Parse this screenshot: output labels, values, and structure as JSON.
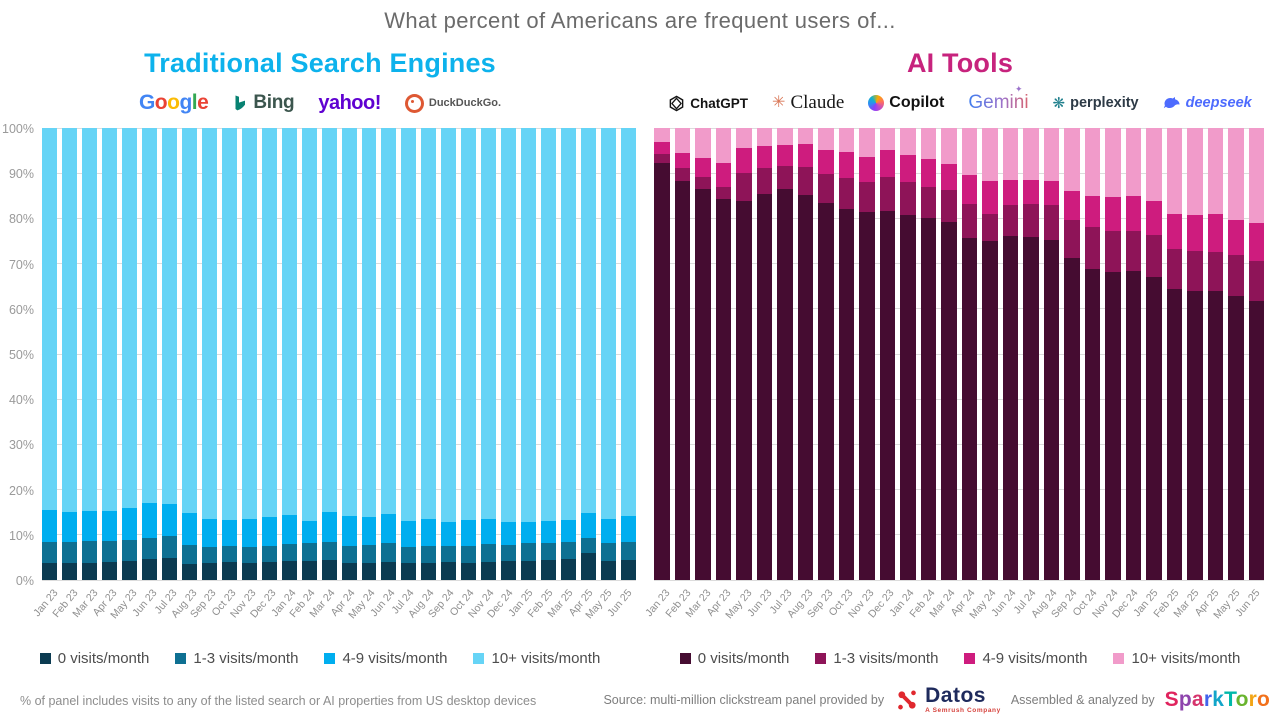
{
  "title": "What percent of Americans are frequent users of...",
  "charts": [
    {
      "title": "Traditional Search Engines",
      "title_color": "#0db2ec",
      "logos": [
        {
          "name": "google",
          "text": "Google"
        },
        {
          "name": "bing",
          "text": "Bing"
        },
        {
          "name": "yahoo",
          "text": "yahoo!"
        },
        {
          "name": "duckduckgo",
          "text": "DuckDuckGo."
        }
      ],
      "google_letters": [
        [
          "G",
          "#4285F4"
        ],
        [
          "o",
          "#EA4335"
        ],
        [
          "o",
          "#FBBC05"
        ],
        [
          "g",
          "#4285F4"
        ],
        [
          "l",
          "#34A853"
        ],
        [
          "e",
          "#EA4335"
        ]
      ]
    },
    {
      "title": "AI Tools",
      "title_color": "#c7237d",
      "logos": [
        {
          "name": "chatgpt",
          "text": "ChatGPT"
        },
        {
          "name": "claude",
          "text": "Claude"
        },
        {
          "name": "copilot",
          "text": "Copilot"
        },
        {
          "name": "gemini",
          "text": "Gemini"
        },
        {
          "name": "perplexity",
          "text": "perplexity"
        },
        {
          "name": "deepseek",
          "text": "deepseek"
        }
      ]
    }
  ],
  "chart_data": [
    {
      "type": "bar",
      "stacked": true,
      "title": "Traditional Search Engines",
      "show_y_axis": true,
      "ylim": [
        0,
        100
      ],
      "yticks": [
        0,
        10,
        20,
        30,
        40,
        50,
        60,
        70,
        80,
        90,
        100
      ],
      "ytick_suffix": "%",
      "grid": true,
      "legend_position": "bottom",
      "x_label_rotation": -50,
      "categories": [
        "Jan 23",
        "Feb 23",
        "Mar 23",
        "Apr 23",
        "May 23",
        "Jun 23",
        "Jul 23",
        "Aug 23",
        "Sep 23",
        "Oct 23",
        "Nov 23",
        "Dec 23",
        "Jan 24",
        "Feb 24",
        "Mar 24",
        "Apr 24",
        "May 24",
        "Jun 24",
        "Jul 24",
        "Aug 24",
        "Sep 24",
        "Oct 24",
        "Nov 24",
        "Dec 24",
        "Jan 25",
        "Feb 25",
        "Mar 25",
        "Apr 25",
        "May 25",
        "Jun 25"
      ],
      "series": [
        {
          "name": "0 visits/month",
          "color": "#0b3b51",
          "values": [
            3.8,
            3.7,
            3.8,
            3.9,
            4.1,
            4.6,
            4.8,
            3.5,
            3.7,
            4.0,
            3.8,
            4.0,
            4.1,
            4.1,
            4.4,
            3.7,
            3.8,
            4.0,
            3.7,
            3.8,
            4.0,
            3.8,
            4.0,
            4.1,
            4.1,
            4.4,
            4.6,
            6.0,
            4.1,
            4.4
          ]
        },
        {
          "name": "1-3 visits/month",
          "color": "#0e7092",
          "values": [
            4.7,
            4.8,
            4.9,
            4.7,
            4.8,
            4.8,
            4.9,
            4.2,
            3.7,
            3.5,
            3.6,
            3.5,
            3.9,
            4.0,
            4.1,
            3.8,
            3.9,
            4.1,
            3.7,
            3.8,
            3.6,
            3.7,
            4.0,
            3.6,
            4.0,
            3.8,
            3.9,
            3.4,
            4.0,
            4.1
          ]
        },
        {
          "name": "4-9 visits/month",
          "color": "#00aeef",
          "values": [
            7.0,
            6.6,
            6.6,
            6.6,
            7.1,
            7.6,
            7.1,
            7.1,
            6.0,
            5.8,
            6.0,
            6.4,
            6.4,
            5.0,
            6.6,
            6.7,
            6.2,
            6.4,
            5.7,
            5.8,
            5.3,
            5.8,
            5.4,
            5.2,
            4.8,
            4.9,
            4.8,
            5.5,
            5.3,
            5.7
          ]
        },
        {
          "name": "10+ visits/month",
          "color": "#66d4f6",
          "values": [
            84.5,
            84.9,
            84.7,
            84.8,
            84.0,
            83.0,
            83.2,
            85.2,
            86.6,
            86.7,
            86.6,
            86.1,
            85.6,
            86.9,
            84.9,
            85.8,
            86.1,
            85.5,
            86.9,
            86.6,
            87.1,
            86.7,
            86.6,
            87.1,
            87.1,
            86.9,
            86.7,
            85.1,
            86.6,
            85.8
          ]
        }
      ]
    },
    {
      "type": "bar",
      "stacked": true,
      "title": "AI Tools",
      "show_y_axis": false,
      "ylim": [
        0,
        100
      ],
      "yticks": [
        0,
        10,
        20,
        30,
        40,
        50,
        60,
        70,
        80,
        90,
        100
      ],
      "ytick_suffix": "%",
      "grid": true,
      "legend_position": "bottom",
      "x_label_rotation": -50,
      "categories": [
        "Jan 23",
        "Feb 23",
        "Mar 23",
        "Apr 23",
        "May 23",
        "Jun 23",
        "Jul 23",
        "Aug 23",
        "Sep 23",
        "Oct 23",
        "Nov 23",
        "Dec 23",
        "Jan 24",
        "Feb 24",
        "Mar 24",
        "Apr 24",
        "May 24",
        "Jun 24",
        "Jul 24",
        "Aug 24",
        "Sep 24",
        "Oct 24",
        "Nov 24",
        "Dec 24",
        "Jan 25",
        "Feb 25",
        "Mar 25",
        "Apr 25",
        "May 25",
        "Jun 25"
      ],
      "series": [
        {
          "name": "0 visits/month",
          "color": "#450c31",
          "values": [
            92.3,
            88.3,
            86.4,
            84.3,
            83.9,
            85.5,
            86.4,
            85.2,
            83.3,
            82.0,
            81.5,
            81.6,
            80.8,
            80.2,
            79.3,
            75.6,
            75.0,
            76.0,
            75.8,
            75.2,
            71.3,
            68.8,
            68.2,
            68.4,
            67.1,
            64.4,
            64.0,
            64.0,
            62.9,
            61.8
          ]
        },
        {
          "name": "1-3 visits/month",
          "color": "#8e1458",
          "values": [
            1.9,
            2.8,
            2.8,
            2.7,
            6.1,
            5.7,
            5.3,
            6.2,
            6.5,
            7.0,
            6.6,
            7.6,
            7.2,
            6.8,
            7.0,
            7.7,
            5.9,
            7.0,
            7.4,
            7.8,
            8.3,
            9.4,
            9.0,
            8.8,
            9.2,
            8.8,
            8.8,
            8.6,
            8.9,
            8.8
          ]
        },
        {
          "name": "4-9 visits/month",
          "color": "#ce1c7e",
          "values": [
            2.6,
            3.3,
            4.1,
            5.2,
            5.5,
            4.9,
            4.5,
            5.0,
            5.3,
            5.6,
            5.4,
            5.9,
            6.0,
            6.1,
            5.7,
            6.2,
            7.4,
            5.6,
            5.2,
            5.3,
            6.5,
            6.8,
            7.6,
            7.8,
            7.6,
            7.7,
            8.0,
            8.3,
            7.8,
            8.5
          ]
        },
        {
          "name": "10+ visits/month",
          "color": "#f19bca",
          "values": [
            3.2,
            5.6,
            6.7,
            7.8,
            4.5,
            3.9,
            3.8,
            3.6,
            4.9,
            5.4,
            6.5,
            4.9,
            6.0,
            6.9,
            8.0,
            10.5,
            11.7,
            11.4,
            11.6,
            11.7,
            13.9,
            15.0,
            15.2,
            15.0,
            16.1,
            19.1,
            19.2,
            19.1,
            20.4,
            20.9
          ]
        }
      ]
    }
  ],
  "footer": {
    "note": "% of panel includes visits to any of the listed search or AI properties from US desktop devices",
    "source_prefix": "Source: multi-million clickstream panel provided by",
    "datos": {
      "name": "Datos",
      "subtitle": "A Semrush Company"
    },
    "assembled_by": "Assembled & analyzed by",
    "sparktoro": "SparkToro",
    "sparktoro_letters": [
      [
        "S",
        "#e0245e"
      ],
      [
        "p",
        "#8e44ad"
      ],
      [
        "a",
        "#d6336c"
      ],
      [
        "r",
        "#4263eb"
      ],
      [
        "k",
        "#12a5c9"
      ],
      [
        "T",
        "#00b8a9"
      ],
      [
        "o",
        "#69b42e"
      ],
      [
        "r",
        "#f2a516"
      ],
      [
        "o",
        "#f2711c"
      ]
    ]
  }
}
